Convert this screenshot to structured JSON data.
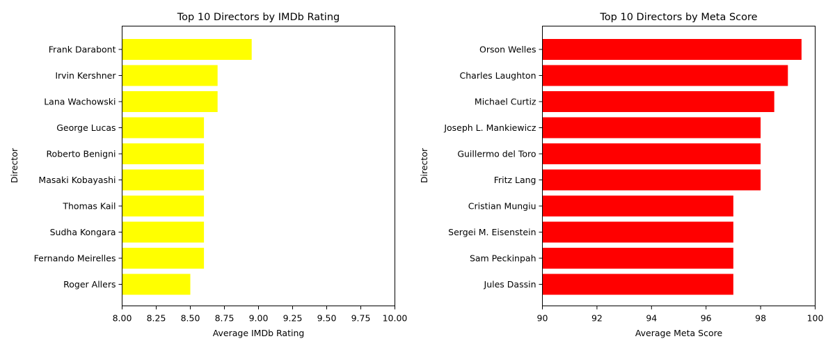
{
  "chart_data": [
    {
      "type": "bar",
      "orientation": "horizontal",
      "title": "Top 10 Directors by IMDb Rating",
      "xlabel": "Average IMDb Rating",
      "ylabel": "Director",
      "xlim": [
        8.0,
        10.0
      ],
      "xticks": [
        "8.00",
        "8.25",
        "8.50",
        "8.75",
        "9.00",
        "9.25",
        "9.50",
        "9.75",
        "10.00"
      ],
      "bar_color": "#ffff00",
      "categories": [
        "Frank Darabont",
        "Irvin Kershner",
        "Lana Wachowski",
        "George Lucas",
        "Roberto Benigni",
        "Masaki Kobayashi",
        "Thomas Kail",
        "Sudha Kongara",
        "Fernando Meirelles",
        "Roger Allers"
      ],
      "values": [
        8.95,
        8.7,
        8.7,
        8.6,
        8.6,
        8.6,
        8.6,
        8.6,
        8.6,
        8.5
      ],
      "grid": false
    },
    {
      "type": "bar",
      "orientation": "horizontal",
      "title": "Top 10 Directors by Meta Score",
      "xlabel": "Average Meta Score",
      "ylabel": "Director",
      "xlim": [
        90,
        100
      ],
      "xticks": [
        "90",
        "92",
        "94",
        "96",
        "98",
        "100"
      ],
      "bar_color": "#ff0000",
      "categories": [
        "Orson Welles",
        "Charles Laughton",
        "Michael Curtiz",
        "Joseph L. Mankiewicz",
        "Guillermo del Toro",
        "Fritz Lang",
        "Cristian Mungiu",
        "Sergei M. Eisenstein",
        "Sam Peckinpah",
        "Jules Dassin"
      ],
      "values": [
        99.5,
        99.0,
        98.5,
        98.0,
        98.0,
        98.0,
        97.0,
        97.0,
        97.0,
        97.0
      ],
      "grid": false
    }
  ]
}
